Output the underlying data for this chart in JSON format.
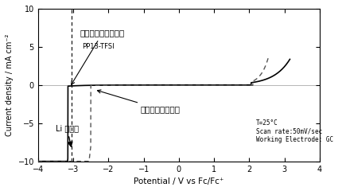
{
  "title": "",
  "xlabel": "Potential / V vs Fc/Fc⁺",
  "ylabel": "Current density / mA cm⁻²",
  "xlim": [
    -4.0,
    4.0
  ],
  "ylim": [
    -10,
    10
  ],
  "xticks": [
    -4.0,
    -3.0,
    -2.0,
    -1.0,
    0.0,
    1.0,
    2.0,
    3.0,
    4.0
  ],
  "yticks": [
    -10,
    -5,
    0,
    5,
    10
  ],
  "annotation_conditions": "T=25°C\nScan rate:50mV/sec\nWorking Electrode: GC",
  "label_honkaihatu": "本開発のイオン液体",
  "label_jurai": "従来のイオン液体",
  "label_pp13": "PP13-TFSI",
  "label_li": "Li の電圧",
  "li_voltage": -3.04,
  "background_color": "#ffffff",
  "line_color": "#000000",
  "dashed_color": "#555555"
}
